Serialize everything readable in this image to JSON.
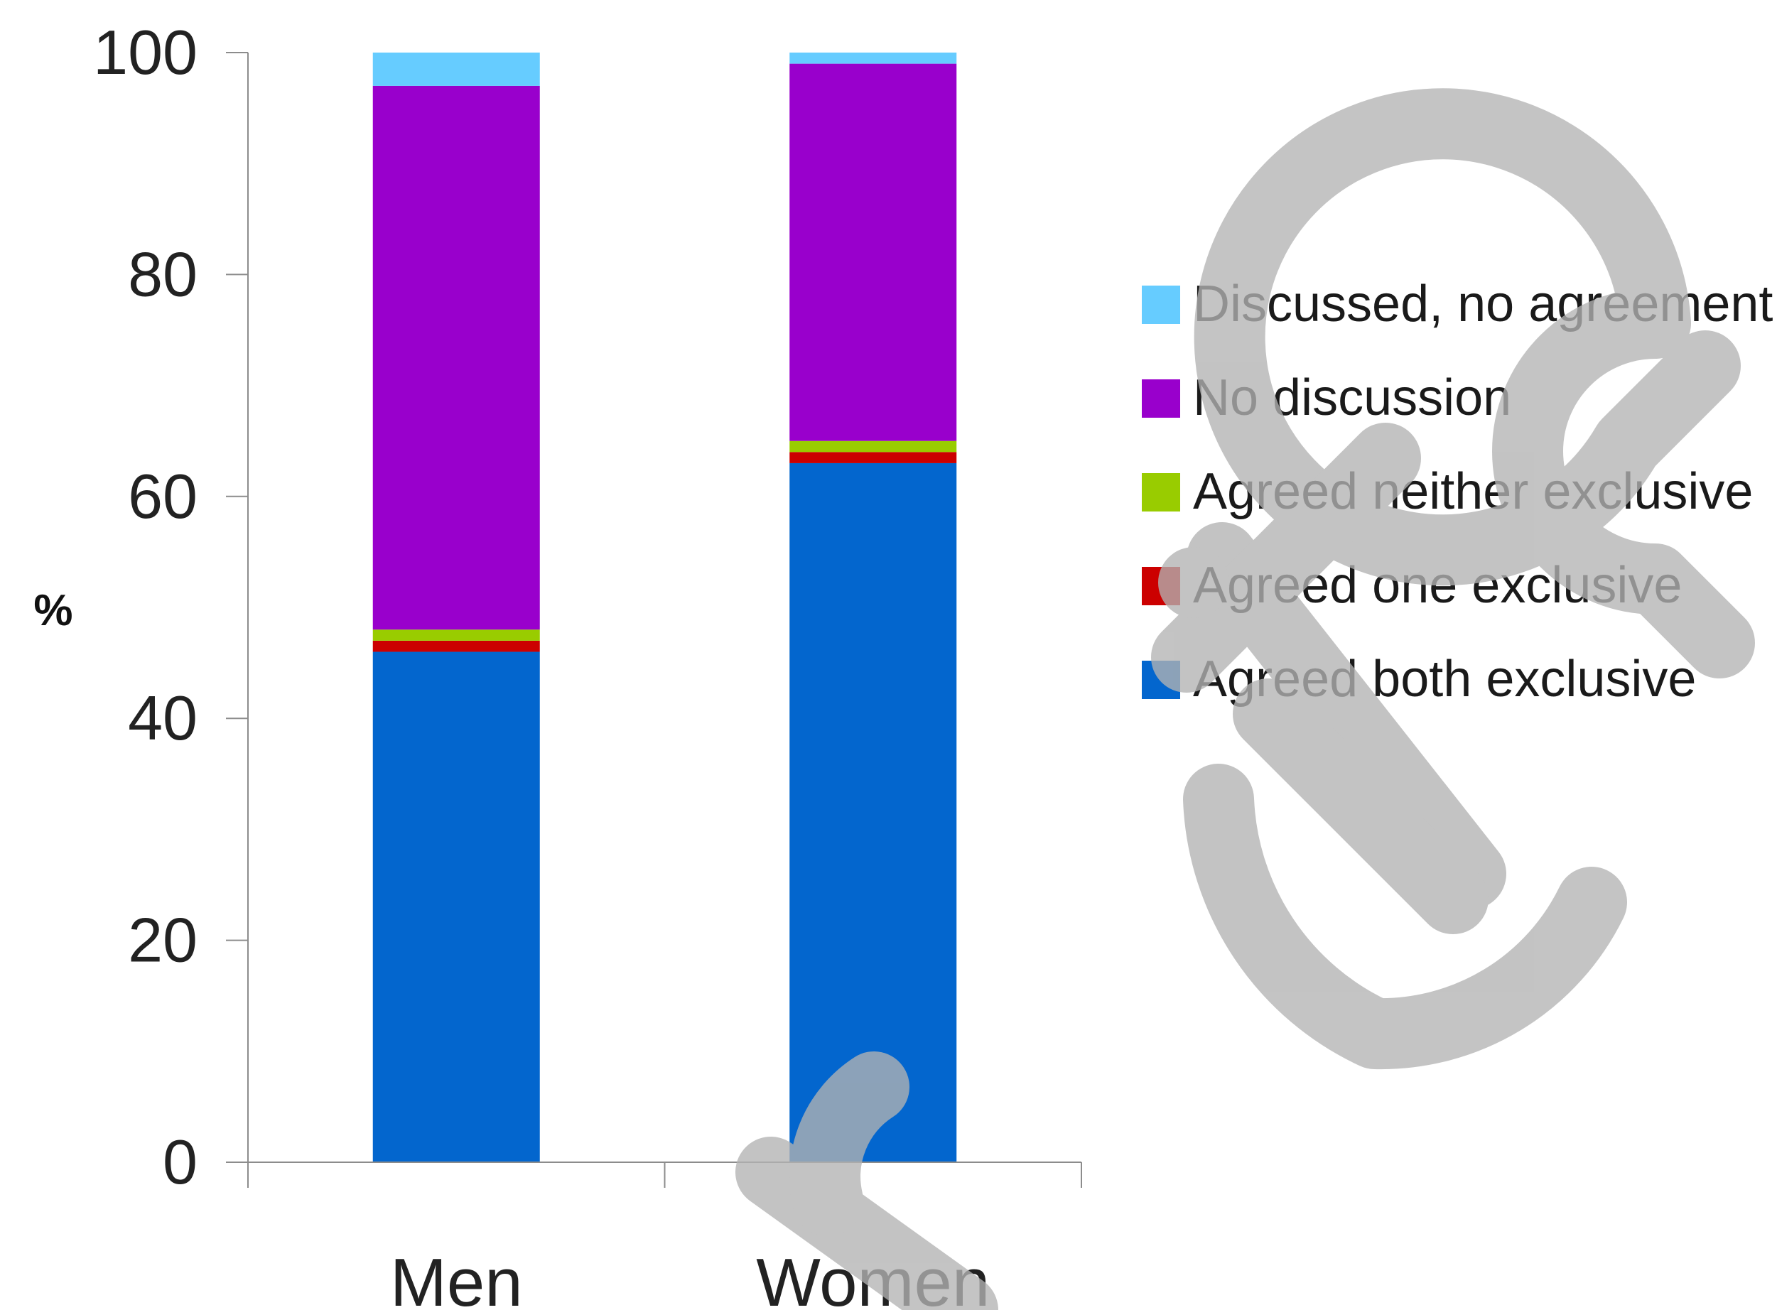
{
  "chart_data": {
    "type": "bar",
    "stacked": true,
    "categories": [
      "Men",
      "Women"
    ],
    "series": [
      {
        "name": "Agreed both exclusive",
        "color": "#0366CE",
        "values": [
          46,
          63
        ]
      },
      {
        "name": "Agreed one exclusive",
        "color": "#CC0000",
        "values": [
          1,
          1
        ]
      },
      {
        "name": "Agreed neither exclusive",
        "color": "#99CC00",
        "values": [
          1,
          1
        ]
      },
      {
        "name": "No discussion",
        "color": "#9900CC",
        "values": [
          49,
          34
        ]
      },
      {
        "name": "Discussed, no agreement",
        "color": "#66CCFF",
        "values": [
          3,
          1
        ]
      }
    ],
    "ylabel": "%",
    "ylim": [
      0,
      100
    ],
    "yticks": [
      0,
      20,
      40,
      60,
      80,
      100
    ],
    "legend_position": "right",
    "legend_order": [
      "Discussed, no agreement",
      "No discussion",
      "Agreed neither exclusive",
      "Agreed one exclusive",
      "Agreed both exclusive"
    ],
    "grid": false
  },
  "watermark": {
    "text": "cite",
    "color": "#B3B3B3"
  }
}
